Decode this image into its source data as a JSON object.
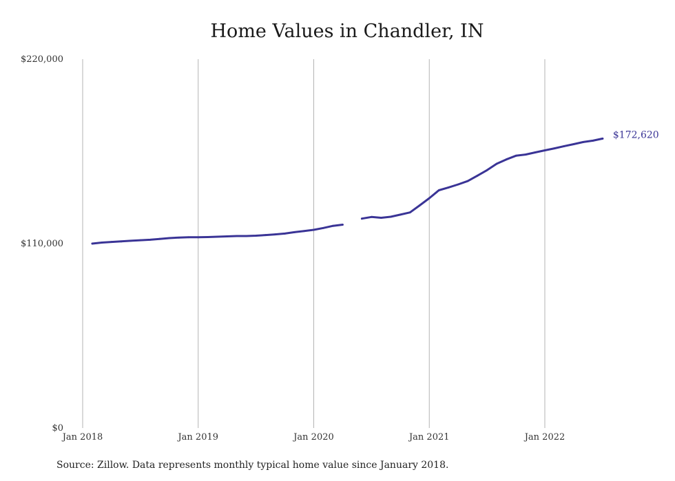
{
  "chart_data": {
    "type": "line",
    "title": "Home Values in Chandler, IN",
    "source": "Source: Zillow. Data represents monthly typical home value since January 2018.",
    "xlabel": "",
    "ylabel": "",
    "ylim": [
      0,
      220000
    ],
    "y_ticks": [
      {
        "value": 0,
        "label": "$0"
      },
      {
        "value": 110000,
        "label": "$110,000"
      },
      {
        "value": 220000,
        "label": "$220,000"
      }
    ],
    "x_ticks": [
      {
        "value": "2018-01",
        "label": "Jan 2018"
      },
      {
        "value": "2019-01",
        "label": "Jan 2019"
      },
      {
        "value": "2020-01",
        "label": "Jan 2020"
      },
      {
        "value": "2021-01",
        "label": "Jan 2021"
      },
      {
        "value": "2022-01",
        "label": "Jan 2022"
      }
    ],
    "x_range": [
      "2018-01",
      "2022-07"
    ],
    "grid": {
      "vertical": true,
      "horizontal": false
    },
    "line_color": "#3a3496",
    "end_label": "$172,620",
    "series": [
      {
        "segments": [
          [
            {
              "x": "2018-02",
              "y": 110000
            },
            {
              "x": "2018-03",
              "y": 110600
            },
            {
              "x": "2018-04",
              "y": 111000
            },
            {
              "x": "2018-05",
              "y": 111300
            },
            {
              "x": "2018-06",
              "y": 111700
            },
            {
              "x": "2018-07",
              "y": 112000
            },
            {
              "x": "2018-08",
              "y": 112300
            },
            {
              "x": "2018-09",
              "y": 112800
            },
            {
              "x": "2018-10",
              "y": 113300
            },
            {
              "x": "2018-11",
              "y": 113600
            },
            {
              "x": "2018-12",
              "y": 113800
            },
            {
              "x": "2019-01",
              "y": 113800
            },
            {
              "x": "2019-02",
              "y": 113900
            },
            {
              "x": "2019-03",
              "y": 114100
            },
            {
              "x": "2019-04",
              "y": 114300
            },
            {
              "x": "2019-05",
              "y": 114500
            },
            {
              "x": "2019-06",
              "y": 114500
            },
            {
              "x": "2019-07",
              "y": 114700
            },
            {
              "x": "2019-08",
              "y": 115100
            },
            {
              "x": "2019-09",
              "y": 115500
            },
            {
              "x": "2019-10",
              "y": 116000
            },
            {
              "x": "2019-11",
              "y": 116800
            },
            {
              "x": "2019-12",
              "y": 117500
            },
            {
              "x": "2020-01",
              "y": 118200
            },
            {
              "x": "2020-02",
              "y": 119300
            },
            {
              "x": "2020-03",
              "y": 120600
            },
            {
              "x": "2020-04",
              "y": 121300
            }
          ],
          [
            {
              "x": "2020-06",
              "y": 124900
            },
            {
              "x": "2020-07",
              "y": 125900
            },
            {
              "x": "2020-08",
              "y": 125400
            },
            {
              "x": "2020-09",
              "y": 126000
            },
            {
              "x": "2020-10",
              "y": 127300
            },
            {
              "x": "2020-11",
              "y": 128600
            },
            {
              "x": "2020-12",
              "y": 132800
            },
            {
              "x": "2021-01",
              "y": 137100
            },
            {
              "x": "2021-02",
              "y": 141800
            },
            {
              "x": "2021-03",
              "y": 143500
            },
            {
              "x": "2021-04",
              "y": 145300
            },
            {
              "x": "2021-05",
              "y": 147300
            },
            {
              "x": "2021-06",
              "y": 150500
            },
            {
              "x": "2021-07",
              "y": 153800
            },
            {
              "x": "2021-08",
              "y": 157600
            },
            {
              "x": "2021-09",
              "y": 160200
            },
            {
              "x": "2021-10",
              "y": 162400
            },
            {
              "x": "2021-11",
              "y": 163100
            },
            {
              "x": "2021-12",
              "y": 164400
            },
            {
              "x": "2022-01",
              "y": 165600
            },
            {
              "x": "2022-02",
              "y": 166800
            },
            {
              "x": "2022-03",
              "y": 168100
            },
            {
              "x": "2022-04",
              "y": 169300
            },
            {
              "x": "2022-05",
              "y": 170600
            },
            {
              "x": "2022-06",
              "y": 171400
            },
            {
              "x": "2022-07",
              "y": 172620
            }
          ]
        ]
      }
    ]
  }
}
